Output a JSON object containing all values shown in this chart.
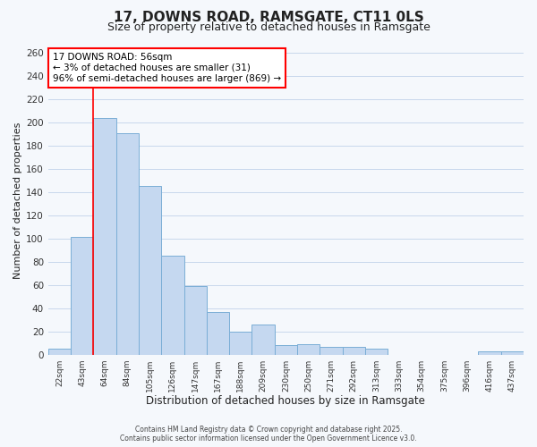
{
  "title": "17, DOWNS ROAD, RAMSGATE, CT11 0LS",
  "subtitle": "Size of property relative to detached houses in Ramsgate",
  "xlabel": "Distribution of detached houses by size in Ramsgate",
  "ylabel": "Number of detached properties",
  "bar_labels": [
    "22sqm",
    "43sqm",
    "64sqm",
    "84sqm",
    "105sqm",
    "126sqm",
    "147sqm",
    "167sqm",
    "188sqm",
    "209sqm",
    "230sqm",
    "250sqm",
    "271sqm",
    "292sqm",
    "313sqm",
    "333sqm",
    "354sqm",
    "375sqm",
    "396sqm",
    "416sqm",
    "437sqm"
  ],
  "bar_values": [
    5,
    101,
    204,
    191,
    145,
    85,
    59,
    37,
    20,
    26,
    8,
    9,
    7,
    7,
    5,
    0,
    0,
    0,
    0,
    3,
    3
  ],
  "bar_color": "#c5d8f0",
  "bar_edge_color": "#7aaed6",
  "ylim": [
    0,
    265
  ],
  "yticks": [
    0,
    20,
    40,
    60,
    80,
    100,
    120,
    140,
    160,
    180,
    200,
    220,
    240,
    260
  ],
  "red_line_index": 2,
  "annotation_title": "17 DOWNS ROAD: 56sqm",
  "annotation_line1": "← 3% of detached houses are smaller (31)",
  "annotation_line2": "96% of semi-detached houses are larger (869) →",
  "footer_line1": "Contains HM Land Registry data © Crown copyright and database right 2025.",
  "footer_line2": "Contains public sector information licensed under the Open Government Licence v3.0.",
  "background_color": "#f5f8fc",
  "grid_color": "#c8d8ec",
  "title_fontsize": 11,
  "subtitle_fontsize": 9
}
